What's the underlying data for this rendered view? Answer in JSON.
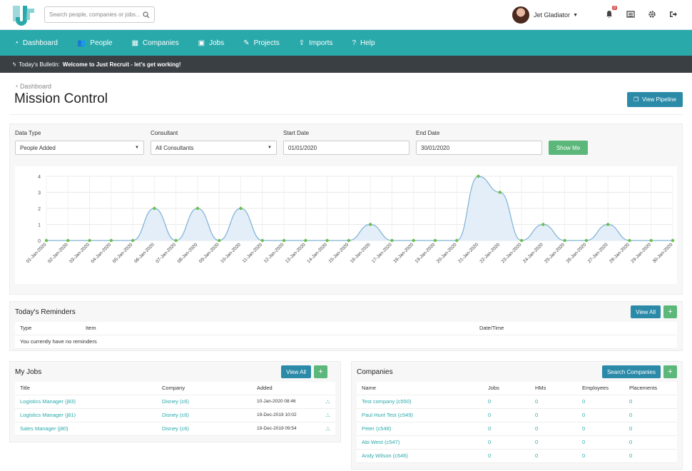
{
  "search": {
    "placeholder": "Search people, companies or jobs..."
  },
  "user": {
    "name": "Jet Gladiator",
    "notification_count": "3"
  },
  "nav": [
    {
      "label": "Dashboard",
      "icon": "dashboard-icon"
    },
    {
      "label": "People",
      "icon": "people-icon"
    },
    {
      "label": "Companies",
      "icon": "building-icon"
    },
    {
      "label": "Jobs",
      "icon": "briefcase-icon"
    },
    {
      "label": "Projects",
      "icon": "pencil-icon"
    },
    {
      "label": "Imports",
      "icon": "upload-icon"
    },
    {
      "label": "Help",
      "icon": "question-icon"
    }
  ],
  "bulletin": {
    "label": "Today's Bulletin:",
    "message": "Welcome to Just Recruit - let's get working!"
  },
  "breadcrumb": "Dashboard",
  "page_title": "Mission Control",
  "view_pipeline_label": "View Pipeline",
  "filters": {
    "data_type_label": "Data Type",
    "data_type_value": "People Added",
    "consultant_label": "Consultant",
    "consultant_value": "All Consultants",
    "start_label": "Start Date",
    "start_value": "01/01/2020",
    "end_label": "End Date",
    "end_value": "30/01/2020",
    "show_me_label": "Show Me"
  },
  "chart_data": {
    "type": "area",
    "x": [
      "01-Jan-2020",
      "02-Jan-2020",
      "03-Jan-2020",
      "04-Jan-2020",
      "05-Jan-2020",
      "06-Jan-2020",
      "07-Jan-2020",
      "08-Jan-2020",
      "09-Jan-2020",
      "10-Jan-2020",
      "11-Jan-2020",
      "12-Jan-2020",
      "13-Jan-2020",
      "14-Jan-2020",
      "15-Jan-2020",
      "16-Jan-2020",
      "17-Jan-2020",
      "18-Jan-2020",
      "19-Jan-2020",
      "20-Jan-2020",
      "21-Jan-2020",
      "22-Jan-2020",
      "23-Jan-2020",
      "24-Jan-2020",
      "25-Jan-2020",
      "26-Jan-2020",
      "27-Jan-2020",
      "28-Jan-2020",
      "29-Jan-2020",
      "30-Jan-2020"
    ],
    "values": [
      0,
      0,
      0,
      0,
      0,
      2,
      0,
      2,
      0,
      2,
      0,
      0,
      0,
      0,
      0,
      1,
      0,
      0,
      0,
      0,
      4,
      3,
      0,
      1,
      0,
      0,
      1,
      0,
      0,
      0
    ],
    "ylim": [
      0,
      4
    ],
    "yticks": [
      "0",
      "1",
      "2",
      "3",
      "4"
    ],
    "grid": true,
    "colors": {
      "line": "#7fb3d5",
      "fill": "#e3eef8",
      "point": "#6abf4b"
    }
  },
  "reminders": {
    "title": "Today's Reminders",
    "view_all_label": "View All",
    "add_label": "+",
    "columns": [
      "Type",
      "Item",
      "Date/Time"
    ],
    "empty_text": "You currently have no reminders"
  },
  "my_jobs": {
    "title": "My Jobs",
    "view_all_label": "View All",
    "add_label": "+",
    "columns": [
      "Title",
      "Company",
      "Added"
    ],
    "rows": [
      {
        "title": "Logistics Manager (j83)",
        "company": "Disney (c6)",
        "added": "10-Jan-2020 08:46"
      },
      {
        "title": "Logistics Manager (j81)",
        "company": "Disney (c6)",
        "added": "19-Dec-2019 10:02"
      },
      {
        "title": "Sales Manager (j80)",
        "company": "Disney (c6)",
        "added": "19-Dec-2019 09:54"
      }
    ]
  },
  "companies": {
    "title": "Companies",
    "search_label": "Search Companies",
    "add_label": "+",
    "columns": [
      "Name",
      "Jobs",
      "HMs",
      "Employees",
      "Placements"
    ],
    "rows": [
      {
        "name": "Test company (c550)",
        "jobs": "0",
        "hms": "0",
        "employees": "0",
        "placements": "0"
      },
      {
        "name": "Paul Hunt Test (c549)",
        "jobs": "0",
        "hms": "0",
        "employees": "0",
        "placements": "0"
      },
      {
        "name": "Peter (c548)",
        "jobs": "0",
        "hms": "0",
        "employees": "0",
        "placements": "0"
      },
      {
        "name": "Abi West (c547)",
        "jobs": "0",
        "hms": "0",
        "employees": "0",
        "placements": "0"
      },
      {
        "name": "Andy Wilson (c546)",
        "jobs": "0",
        "hms": "0",
        "employees": "0",
        "placements": "0"
      }
    ]
  }
}
